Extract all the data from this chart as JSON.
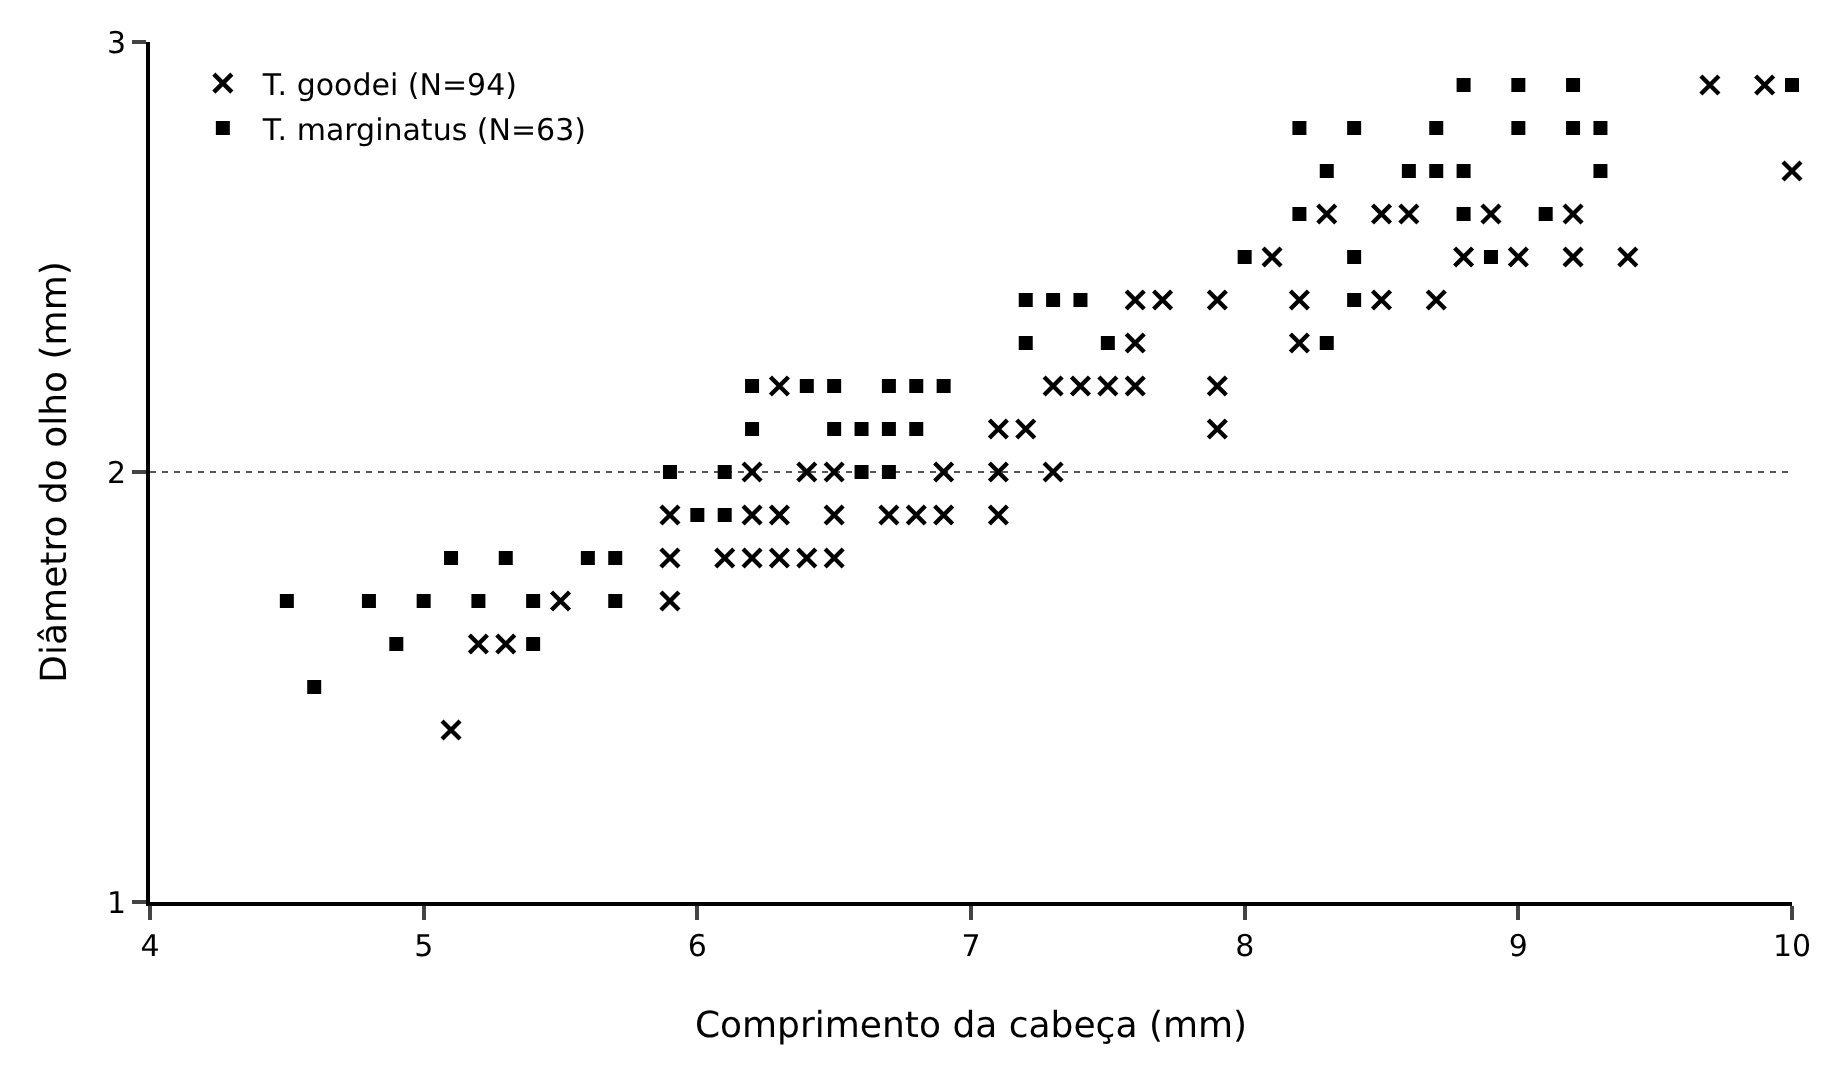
{
  "chart_data": {
    "type": "scatter",
    "xlabel": "Comprimento da cabeça (mm)",
    "ylabel": "Diâmetro do olho (mm)",
    "xlim": [
      4,
      10
    ],
    "ylim": [
      1,
      3
    ],
    "xticks": [
      4,
      5,
      6,
      7,
      8,
      9,
      10
    ],
    "yticks": [
      1,
      2,
      3
    ],
    "grid": "y",
    "legend": "top left",
    "series": [
      {
        "name": "T. goodei (N=94)",
        "color": "#000000",
        "marker": "cross",
        "x": [
          9.7,
          9.9,
          10.0,
          8.3,
          8.5,
          8.6,
          8.9,
          9.2,
          8.1,
          8.8,
          9.0,
          9.2,
          9.4,
          7.6,
          7.7,
          7.9,
          8.2,
          8.5,
          8.7,
          7.6,
          8.2,
          6.3,
          7.3,
          7.4,
          7.5,
          7.6,
          7.9,
          7.1,
          7.2,
          7.9,
          6.2,
          6.4,
          6.5,
          6.9,
          7.1,
          7.3,
          5.9,
          6.2,
          6.3,
          6.5,
          6.7,
          6.8,
          6.9,
          7.1,
          5.9,
          6.1,
          6.2,
          6.3,
          6.4,
          6.5,
          5.5,
          5.9,
          5.2,
          5.3,
          5.1
        ],
        "values": [
          2.9,
          2.9,
          2.7,
          2.6,
          2.6,
          2.6,
          2.6,
          2.6,
          2.5,
          2.5,
          2.5,
          2.5,
          2.5,
          2.4,
          2.4,
          2.4,
          2.4,
          2.4,
          2.4,
          2.3,
          2.3,
          2.2,
          2.2,
          2.2,
          2.2,
          2.2,
          2.2,
          2.1,
          2.1,
          2.1,
          2.0,
          2.0,
          2.0,
          2.0,
          2.0,
          2.0,
          1.9,
          1.9,
          1.9,
          1.9,
          1.9,
          1.9,
          1.9,
          1.9,
          1.8,
          1.8,
          1.8,
          1.8,
          1.8,
          1.8,
          1.7,
          1.7,
          1.6,
          1.6,
          1.4
        ]
      },
      {
        "name": "T. marginatus (N=63)",
        "color": "#000000",
        "marker": "square",
        "x": [
          8.8,
          9.0,
          9.2,
          10.0,
          8.2,
          8.4,
          8.7,
          9.0,
          9.2,
          9.3,
          8.3,
          8.6,
          8.7,
          8.8,
          9.3,
          8.2,
          8.8,
          9.1,
          8.0,
          8.4,
          8.9,
          7.2,
          7.3,
          7.4,
          8.4,
          7.2,
          7.5,
          8.3,
          6.2,
          6.4,
          6.5,
          6.7,
          6.8,
          6.9,
          6.2,
          6.5,
          6.6,
          6.7,
          6.8,
          5.9,
          6.1,
          6.6,
          6.7,
          6.0,
          6.1,
          5.1,
          5.3,
          5.6,
          5.7,
          4.5,
          4.8,
          5.0,
          5.2,
          5.4,
          5.7,
          4.9,
          5.4,
          4.6
        ],
        "values": [
          2.9,
          2.9,
          2.9,
          2.9,
          2.8,
          2.8,
          2.8,
          2.8,
          2.8,
          2.8,
          2.7,
          2.7,
          2.7,
          2.7,
          2.7,
          2.6,
          2.6,
          2.6,
          2.5,
          2.5,
          2.5,
          2.4,
          2.4,
          2.4,
          2.4,
          2.3,
          2.3,
          2.3,
          2.2,
          2.2,
          2.2,
          2.2,
          2.2,
          2.2,
          2.1,
          2.1,
          2.1,
          2.1,
          2.1,
          2.0,
          2.0,
          2.0,
          2.0,
          1.9,
          1.9,
          1.8,
          1.8,
          1.8,
          1.8,
          1.7,
          1.7,
          1.7,
          1.7,
          1.7,
          1.7,
          1.6,
          1.6,
          1.5
        ]
      }
    ]
  }
}
